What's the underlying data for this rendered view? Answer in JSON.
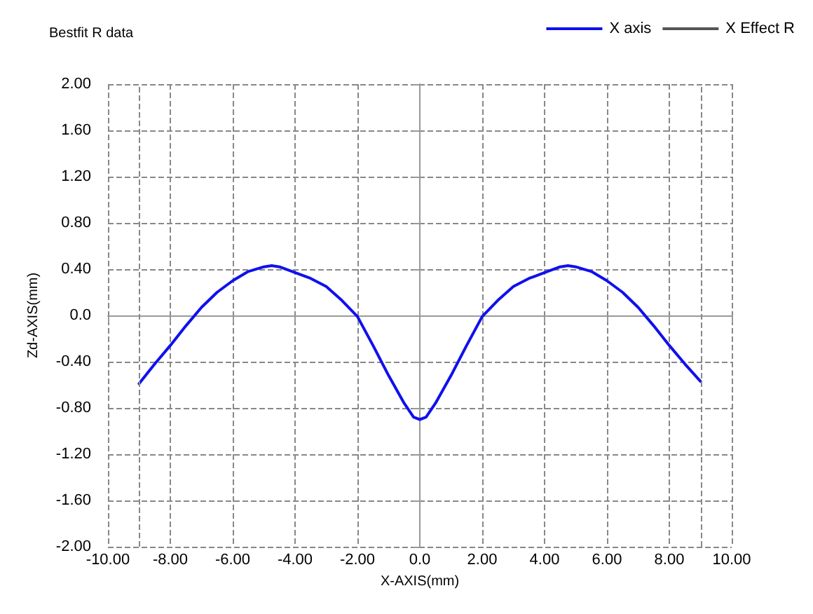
{
  "chart_data": {
    "type": "line",
    "title": "Bestfit R data",
    "xlabel": "X-AXIS(mm)",
    "ylabel": "Zd-AXIS(mm)",
    "xlim": [
      -10,
      10
    ],
    "xticks": [
      {
        "value": -10,
        "label": "-10.00"
      },
      {
        "value": -8,
        "label": "-8.00"
      },
      {
        "value": -6,
        "label": "-6.00"
      },
      {
        "value": -4,
        "label": "-4.00"
      },
      {
        "value": -2,
        "label": "-2.00"
      },
      {
        "value": 0,
        "label": "0.0"
      },
      {
        "value": 2,
        "label": "2.00"
      },
      {
        "value": 4,
        "label": "4.00"
      },
      {
        "value": 6,
        "label": "6.00"
      },
      {
        "value": 8,
        "label": "8.00"
      },
      {
        "value": 10,
        "label": "10.00"
      }
    ],
    "ylim": [
      -2,
      2
    ],
    "yticks": [
      {
        "value": -2,
        "label": "-2.00"
      },
      {
        "value": -1.6,
        "label": "-1.60"
      },
      {
        "value": -1.2,
        "label": "-1.20"
      },
      {
        "value": -0.8,
        "label": "-0.80"
      },
      {
        "value": -0.4,
        "label": "-0.40"
      },
      {
        "value": 0,
        "label": "0.0"
      },
      {
        "value": 0.4,
        "label": "0.40"
      },
      {
        "value": 0.8,
        "label": "0.80"
      },
      {
        "value": 1.2,
        "label": "1.20"
      },
      {
        "value": 1.6,
        "label": "1.60"
      },
      {
        "value": 2,
        "label": "2.00"
      }
    ],
    "x": [
      -9,
      -8.5,
      -8,
      -7.5,
      -7,
      -6.5,
      -6,
      -5.5,
      -5,
      -4.75,
      -4.5,
      -4,
      -3.5,
      -3,
      -2.5,
      -2,
      -1.5,
      -1,
      -0.5,
      -0.2,
      0,
      0.2,
      0.5,
      1,
      1.5,
      2,
      2.5,
      3,
      3.5,
      4,
      4.5,
      4.75,
      5,
      5.5,
      6,
      6.5,
      7,
      7.5,
      8,
      8.5,
      9
    ],
    "series": [
      {
        "name": "X axis",
        "color": "#1010ee",
        "line_style": "solid",
        "values": [
          -0.59,
          -0.42,
          -0.26,
          -0.09,
          0.07,
          0.2,
          0.3,
          0.38,
          0.42,
          0.43,
          0.42,
          0.37,
          0.32,
          0.25,
          0.13,
          -0.01,
          -0.26,
          -0.52,
          -0.76,
          -0.88,
          -0.9,
          -0.88,
          -0.76,
          -0.52,
          -0.26,
          -0.01,
          0.13,
          0.25,
          0.32,
          0.37,
          0.42,
          0.43,
          0.42,
          0.38,
          0.3,
          0.2,
          0.07,
          -0.09,
          -0.26,
          -0.42,
          -0.57
        ]
      },
      {
        "name": "X Effect R",
        "color": "#555555",
        "line_style": "dashed",
        "values": [
          null,
          null,
          null,
          null,
          null,
          null,
          null,
          null,
          null,
          null,
          null,
          null,
          null,
          null,
          null,
          null,
          null,
          null,
          null,
          null,
          null,
          null,
          null,
          null,
          null,
          null,
          null,
          null,
          null,
          null,
          null,
          null,
          null,
          null,
          null,
          null,
          null,
          null,
          null,
          null,
          null
        ]
      }
    ],
    "ref_lines": [
      {
        "axis": "x",
        "value": -9,
        "label": null,
        "color": "#888888",
        "line_style": "dashed"
      },
      {
        "axis": "x",
        "value": 9,
        "label": null,
        "color": "#888888",
        "line_style": "dashed"
      }
    ],
    "grid": true,
    "legend": "top right",
    "marker": "none"
  }
}
